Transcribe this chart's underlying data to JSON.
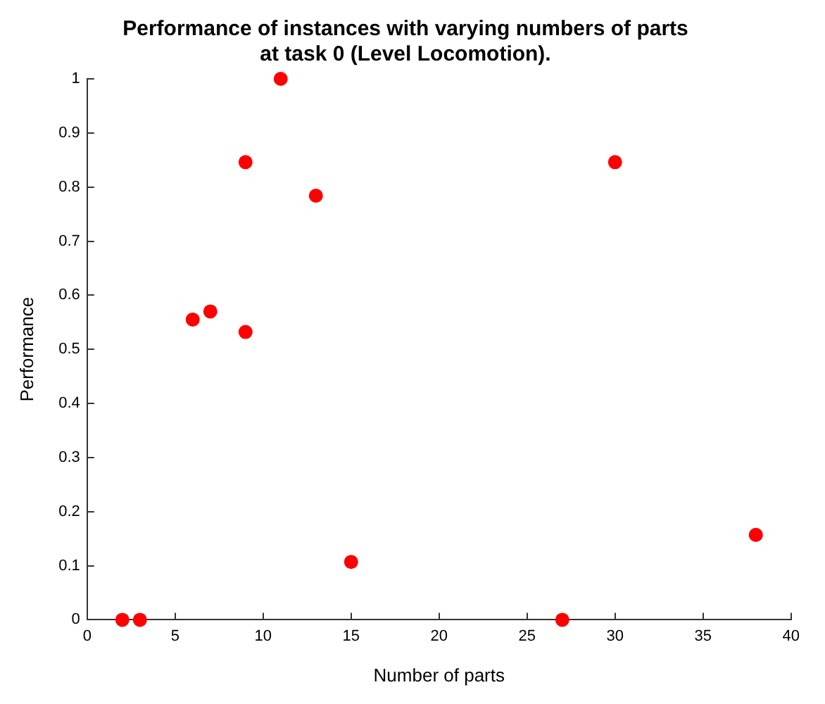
{
  "chart_data": {
    "type": "scatter",
    "title": "Performance of instances with varying numbers of parts\nat task 0 (Level Locomotion).",
    "xlabel": "Number of parts",
    "ylabel": "Performance",
    "x": [
      2,
      3,
      6,
      7,
      9,
      9,
      11,
      13,
      15,
      27,
      30,
      38
    ],
    "series": [
      {
        "color": "#ff0000",
        "values": [
          0,
          0,
          0.555,
          0.57,
          0.846,
          0.532,
          1,
          0.784,
          0.107,
          0,
          0.846,
          0.157
        ]
      }
    ],
    "xlim": [
      0,
      40
    ],
    "xticks": [
      0,
      5,
      10,
      15,
      20,
      25,
      30,
      35,
      40
    ],
    "ylim": [
      0,
      1
    ],
    "yticks": [
      0,
      0.1,
      0.2,
      0.3,
      0.4,
      0.5,
      0.6,
      0.7,
      0.8,
      0.9,
      1
    ],
    "grid": false,
    "legend": false,
    "marker": "circle"
  }
}
